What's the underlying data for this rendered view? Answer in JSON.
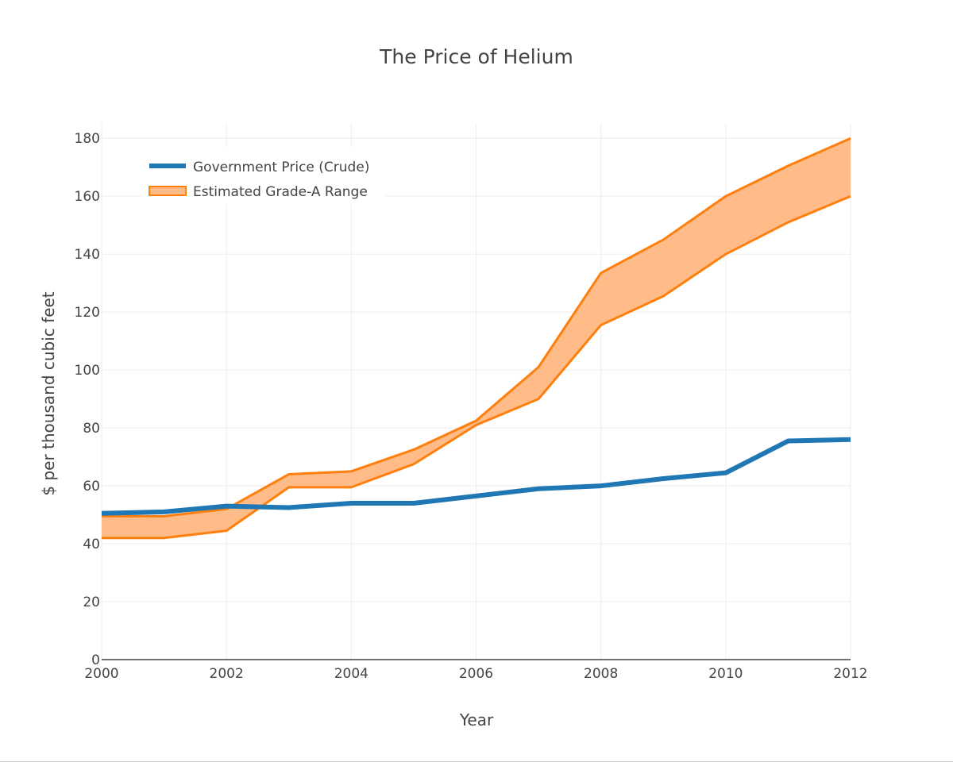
{
  "chart_data": {
    "type": "line",
    "title": "The Price of Helium",
    "xlabel": "Year",
    "ylabel": "$ per thousand cubic feet",
    "xlim": [
      2000,
      2012
    ],
    "ylim": [
      0,
      185
    ],
    "x_ticks": [
      "2000",
      "2002",
      "2004",
      "2006",
      "2008",
      "2010",
      "2012"
    ],
    "y_ticks": [
      "0",
      "20",
      "40",
      "60",
      "80",
      "100",
      "120",
      "140",
      "160",
      "180"
    ],
    "grid": true,
    "legend_position": "top-left",
    "x": [
      2000,
      2001,
      2002,
      2003,
      2004,
      2005,
      2006,
      2007,
      2008,
      2009,
      2010,
      2011,
      2012
    ],
    "series": [
      {
        "name": "Government Price (Crude)",
        "kind": "line",
        "color": "#1f77b4",
        "values": [
          50.5,
          51,
          53,
          52.5,
          54,
          54,
          56.5,
          59,
          60,
          62.5,
          64.5,
          75.5,
          76
        ]
      },
      {
        "name": "Estimated Grade-A Range",
        "kind": "band",
        "color": "#ff7f0e",
        "fill": "#ffbb88",
        "lower": [
          42,
          42,
          44.5,
          59.5,
          59.5,
          67.5,
          81,
          90,
          115.5,
          125.5,
          140,
          151,
          160
        ],
        "upper": [
          49.5,
          49.5,
          52,
          64,
          65,
          72.5,
          82.5,
          101,
          133.5,
          145,
          160,
          170.5,
          180
        ]
      }
    ]
  }
}
